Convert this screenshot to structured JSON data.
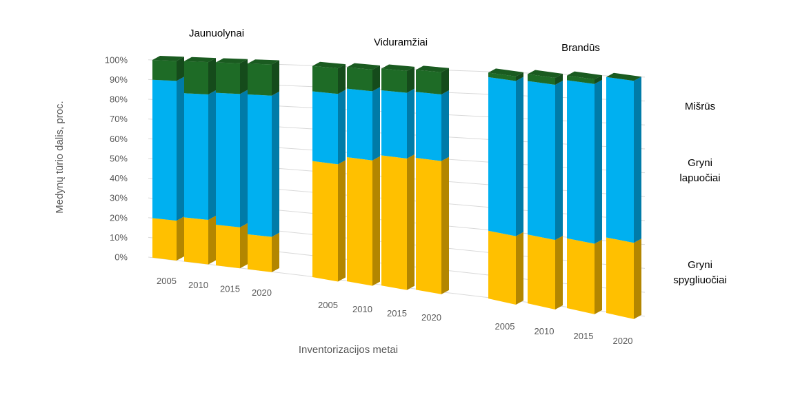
{
  "chart_data": {
    "type": "bar",
    "subtype": "3d-stacked-percent-column",
    "ylabel": "Medynų tūrio dalis, proc.",
    "xlabel": "Inventorizacijos metai",
    "yticks": [
      "0%",
      "10%",
      "20%",
      "30%",
      "40%",
      "50%",
      "60%",
      "70%",
      "80%",
      "90%",
      "100%"
    ],
    "ylim": [
      0,
      100
    ],
    "grid": true,
    "legend_position": "right",
    "colors": {
      "Mišrūs": "#1e6b26",
      "Gryni lapuočiai": "#00b0f0",
      "Gryni spygliuočiai": "#ffc000"
    },
    "legend": [
      {
        "lines": [
          "Mišrūs"
        ],
        "series": "Mišrūs"
      },
      {
        "lines": [
          "Gryni",
          "lapuočiai"
        ],
        "series": "Gryni lapuočiai"
      },
      {
        "lines": [
          "Gryni",
          "spygliuočiai"
        ],
        "series": "Gryni spygliuočiai"
      }
    ],
    "groups": [
      {
        "name": "Jaunuolynai",
        "categories": [
          "2005",
          "2010",
          "2015",
          "2020"
        ],
        "series": [
          {
            "name": "Gryni spygliuočiai",
            "values": [
              20,
              22,
              20,
              17
            ]
          },
          {
            "name": "Gryni lapuočiai",
            "values": [
              70,
              62,
              65,
              68
            ]
          },
          {
            "name": "Mišrūs",
            "values": [
              10,
              16,
              15,
              15
            ]
          }
        ]
      },
      {
        "name": "Viduramžiai",
        "categories": [
          "2005",
          "2010",
          "2015",
          "2020"
        ],
        "series": [
          {
            "name": "Gryni spygliuočiai",
            "values": [
              55,
              58,
              60,
              60
            ]
          },
          {
            "name": "Gryni lapuočiai",
            "values": [
              33,
              32,
              30,
              30
            ]
          },
          {
            "name": "Mišrūs",
            "values": [
              12,
              10,
              10,
              10
            ]
          }
        ]
      },
      {
        "name": "Brandūs",
        "categories": [
          "2005",
          "2010",
          "2015",
          "2020"
        ],
        "series": [
          {
            "name": "Gryni spygliuočiai",
            "values": [
              30,
              30,
              30,
              32
            ]
          },
          {
            "name": "Gryni lapuočiai",
            "values": [
              68,
              67,
              68,
              68
            ]
          },
          {
            "name": "Mišrūs",
            "values": [
              2,
              3,
              2,
              0
            ]
          }
        ]
      }
    ]
  }
}
